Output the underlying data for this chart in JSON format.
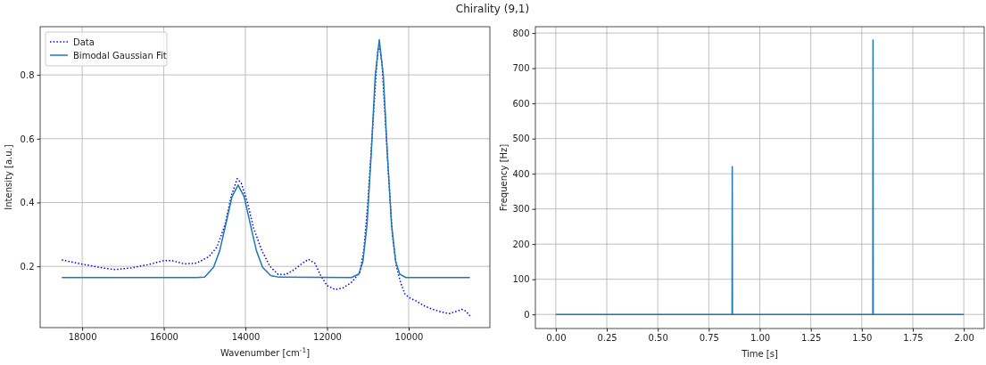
{
  "chart_data": [
    {
      "type": "line",
      "title": "Chirality (9,1)",
      "xlabel": "Wavenumber [cm$^{-1}$]",
      "ylabel": "Intensity [a.u.]",
      "xlim": [
        19030,
        8010
      ],
      "xticks": [
        18000,
        16000,
        14000,
        12000,
        10000
      ],
      "ylim": [
        0.008,
        0.951
      ],
      "yticks": [
        {
          "value": 0.2,
          "label": "0.2"
        },
        {
          "value": 0.4,
          "label": "0.4"
        },
        {
          "value": 0.6,
          "label": "0.6"
        },
        {
          "value": 0.8,
          "label": "0.8"
        }
      ],
      "grid": true,
      "legend": "top left",
      "series": [
        {
          "name": "Data",
          "color": "#0000ff",
          "line_style": "dotted",
          "x": [
            18500,
            18000,
            17500,
            17200,
            16800,
            16400,
            16000,
            15800,
            15500,
            15200,
            14900,
            14700,
            14500,
            14350,
            14200,
            14100,
            13950,
            13800,
            13600,
            13400,
            13200,
            13000,
            12800,
            12600,
            12450,
            12300,
            12150,
            12000,
            11800,
            11600,
            11400,
            11200,
            11100,
            11000,
            10900,
            10800,
            10750,
            10700,
            10650,
            10600,
            10500,
            10400,
            10300,
            10200,
            10100,
            10000,
            9800,
            9600,
            9400,
            9200,
            9000,
            8800,
            8700,
            8600,
            8500
          ],
          "values": [
            0.22,
            0.207,
            0.195,
            0.19,
            0.195,
            0.205,
            0.218,
            0.218,
            0.208,
            0.21,
            0.23,
            0.26,
            0.33,
            0.42,
            0.475,
            0.46,
            0.4,
            0.32,
            0.25,
            0.2,
            0.175,
            0.175,
            0.19,
            0.21,
            0.222,
            0.21,
            0.17,
            0.14,
            0.127,
            0.133,
            0.15,
            0.18,
            0.25,
            0.4,
            0.6,
            0.8,
            0.885,
            0.88,
            0.83,
            0.72,
            0.5,
            0.3,
            0.2,
            0.15,
            0.115,
            0.103,
            0.09,
            0.075,
            0.065,
            0.057,
            0.052,
            0.06,
            0.065,
            0.06,
            0.045
          ]
        },
        {
          "name": "Bimodal Gaussian Fit",
          "color": "#1f77b4",
          "line_style": "solid",
          "x": [
            18500,
            15200,
            15000,
            14780,
            14630,
            14480,
            14330,
            14180,
            14030,
            13880,
            13730,
            13580,
            13380,
            13180,
            11400,
            11220,
            11120,
            11020,
            10920,
            10820,
            10720,
            10620,
            10520,
            10420,
            10320,
            10220,
            10070,
            8500
          ],
          "values": [
            0.165,
            0.165,
            0.166,
            0.197,
            0.249,
            0.332,
            0.418,
            0.455,
            0.418,
            0.332,
            0.249,
            0.197,
            0.171,
            0.166,
            0.165,
            0.176,
            0.216,
            0.331,
            0.547,
            0.795,
            0.91,
            0.795,
            0.547,
            0.331,
            0.216,
            0.176,
            0.165,
            0.165
          ]
        }
      ]
    },
    {
      "type": "line",
      "xlabel": "Time [s]",
      "ylabel": "Frequency [Hz]",
      "xlim": [
        -0.1,
        2.1
      ],
      "xticks": [
        {
          "value": 0,
          "label": "0.00"
        },
        {
          "value": 0.25,
          "label": "0.25"
        },
        {
          "value": 0.5,
          "label": "0.50"
        },
        {
          "value": 0.75,
          "label": "0.75"
        },
        {
          "value": 1,
          "label": "1.00"
        },
        {
          "value": 1.25,
          "label": "1.25"
        },
        {
          "value": 1.5,
          "label": "1.50"
        },
        {
          "value": 1.75,
          "label": "1.75"
        },
        {
          "value": 2,
          "label": "2.00"
        }
      ],
      "ylim": [
        -40,
        818
      ],
      "yticks": [
        0,
        100,
        200,
        300,
        400,
        500,
        600,
        700,
        800
      ],
      "grid": true,
      "series": [
        {
          "color": "#1f77b4",
          "line_style": "solid",
          "x": [
            0,
            0.864,
            0.865,
            0.866,
            1.554,
            1.555,
            1.556,
            2.0
          ],
          "values": [
            0,
            0,
            420,
            0,
            0,
            780,
            0,
            0
          ]
        }
      ]
    }
  ]
}
